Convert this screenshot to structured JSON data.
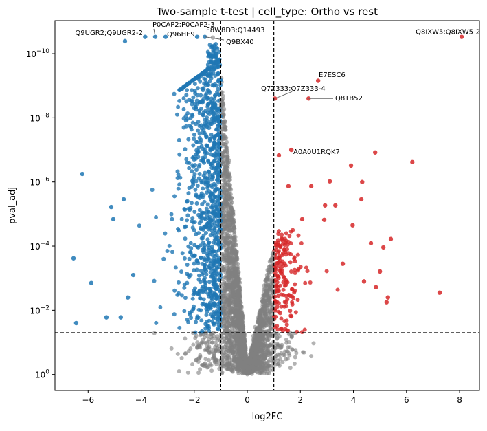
{
  "chart_data": {
    "type": "scatter",
    "title": "Two-sample t-test | cell_type: Ortho vs rest",
    "xlabel": "log2FC",
    "ylabel": "pval_adj",
    "xlim": [
      -7.25,
      8.75
    ],
    "ylim_neg_log10": [
      -0.5,
      11.03
    ],
    "y_scale": "log (inverted)",
    "x_ticks": [
      -6,
      -4,
      -2,
      0,
      2,
      4,
      6,
      8
    ],
    "x_tick_labels": [
      "−6",
      "−4",
      "−2",
      "0",
      "2",
      "4",
      "6",
      "8"
    ],
    "y_ticks_exponent": [
      -10,
      -8,
      -6,
      -4,
      -2,
      0
    ],
    "y_tick_base": "10",
    "thresholds": {
      "log2FC": [
        -1,
        1
      ],
      "pval_adj": 0.05
    },
    "colors": {
      "down": "#1f77b4",
      "up": "#d62728",
      "ns": "#808080"
    },
    "grid": false,
    "labeled_points": [
      {
        "label": "Q8IXW5;Q8IXW5-2",
        "x": 8.08,
        "p": 3e-11,
        "group": "up"
      },
      {
        "label": "E7ESC6",
        "x": 2.67,
        "p": 7e-10,
        "group": "up"
      },
      {
        "label": "Q7Z333;Q7Z333-4",
        "x": 1.04,
        "p": 2.5e-09,
        "group": "up"
      },
      {
        "label": "Q8TB52",
        "x": 2.31,
        "p": 2.5e-09,
        "group": "up"
      },
      {
        "label": "A0A0U1RQK7",
        "x": 1.66,
        "p": 1e-07,
        "group": "up"
      },
      {
        "label": "Q9UGR2;Q9UGR2-2",
        "x": -3.85,
        "p": 3e-11,
        "group": "down"
      },
      {
        "label": "P0CAP2;P0CAP2-3",
        "x": -3.47,
        "p": 3e-11,
        "group": "down"
      },
      {
        "label": "Q96HE9",
        "x": -3.08,
        "p": 3e-11,
        "group": "down"
      },
      {
        "label": "F8W8D3;Q14493",
        "x": -1.89,
        "p": 3e-11,
        "group": "down"
      },
      {
        "label": "Q9BX40",
        "x": -1.6,
        "p": 3e-11,
        "group": "down"
      }
    ],
    "points": [
      {
        "x": 1.19,
        "nlp": 6.83,
        "group": "up"
      },
      {
        "x": 4.82,
        "nlp": 6.92,
        "group": "up"
      },
      {
        "x": 6.22,
        "nlp": 6.62,
        "group": "up"
      },
      {
        "x": 3.91,
        "nlp": 6.51,
        "group": "up"
      },
      {
        "x": 3.11,
        "nlp": 6.02,
        "group": "up"
      },
      {
        "x": 4.33,
        "nlp": 6.0,
        "group": "up"
      },
      {
        "x": 2.41,
        "nlp": 5.87,
        "group": "up"
      },
      {
        "x": 1.55,
        "nlp": 5.87,
        "group": "up"
      },
      {
        "x": 4.3,
        "nlp": 5.46,
        "group": "up"
      },
      {
        "x": 3.97,
        "nlp": 4.65,
        "group": "up"
      },
      {
        "x": 3.32,
        "nlp": 5.27,
        "group": "up"
      },
      {
        "x": 2.93,
        "nlp": 5.27,
        "group": "up"
      },
      {
        "x": 2.9,
        "nlp": 4.82,
        "group": "up"
      },
      {
        "x": 2.07,
        "nlp": 4.84,
        "group": "up"
      },
      {
        "x": 4.66,
        "nlp": 4.09,
        "group": "up"
      },
      {
        "x": 5.13,
        "nlp": 3.96,
        "group": "up"
      },
      {
        "x": 5.41,
        "nlp": 4.22,
        "group": "up"
      },
      {
        "x": 5.0,
        "nlp": 3.21,
        "group": "up"
      },
      {
        "x": 7.25,
        "nlp": 2.55,
        "group": "up"
      },
      {
        "x": 5.3,
        "nlp": 2.4,
        "group": "up"
      },
      {
        "x": 5.25,
        "nlp": 2.25,
        "group": "up"
      },
      {
        "x": 4.85,
        "nlp": 2.72,
        "group": "up"
      },
      {
        "x": 4.4,
        "nlp": 2.9,
        "group": "up"
      },
      {
        "x": 3.6,
        "nlp": 3.45,
        "group": "up"
      },
      {
        "x": -6.55,
        "nlp": 3.62,
        "group": "down"
      },
      {
        "x": -6.22,
        "nlp": 6.25,
        "group": "down"
      },
      {
        "x": -6.45,
        "nlp": 1.6,
        "group": "down"
      },
      {
        "x": -5.88,
        "nlp": 2.85,
        "group": "down"
      },
      {
        "x": -5.31,
        "nlp": 1.78,
        "group": "down"
      },
      {
        "x": -5.13,
        "nlp": 5.22,
        "group": "down"
      },
      {
        "x": -5.05,
        "nlp": 4.84,
        "group": "down"
      },
      {
        "x": -4.66,
        "nlp": 5.46,
        "group": "down"
      },
      {
        "x": -4.77,
        "nlp": 1.78,
        "group": "down"
      },
      {
        "x": -4.61,
        "nlp": 10.39,
        "group": "down"
      },
      {
        "x": -4.5,
        "nlp": 2.4,
        "group": "down"
      },
      {
        "x": -4.3,
        "nlp": 3.1,
        "group": "down"
      },
      {
        "x": -1.3,
        "nlp": 10.5,
        "group": "ns"
      }
    ]
  }
}
